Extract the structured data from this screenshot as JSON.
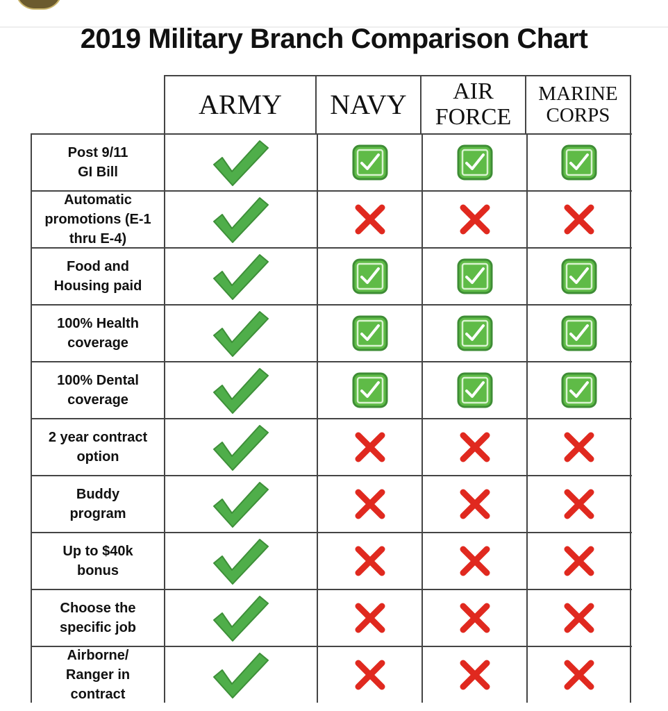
{
  "title": "2019 Military Branch Comparison Chart",
  "branches": [
    {
      "key": "army",
      "label": "ARMY"
    },
    {
      "key": "navy",
      "label": "NAVY"
    },
    {
      "key": "air_force",
      "label": "AIR\nFORCE"
    },
    {
      "key": "marine_corps",
      "label": "MARINE\nCORPS"
    }
  ],
  "colors": {
    "army_check": "#4fae4a",
    "badge_fill": "#5fbb47",
    "badge_dark": "#3e8d35",
    "cross": "#e0291f"
  },
  "icons": {
    "army": "large-check-icon",
    "yes": "check-box-icon",
    "no": "cross-icon"
  },
  "rows": [
    {
      "label": "Post 9/11\nGI Bill",
      "army": true,
      "navy": true,
      "air_force": true,
      "marine_corps": true
    },
    {
      "label": "Automatic\npromotions (E-1\nthru E-4)",
      "army": true,
      "navy": false,
      "air_force": false,
      "marine_corps": false
    },
    {
      "label": "Food and\nHousing paid",
      "army": true,
      "navy": true,
      "air_force": true,
      "marine_corps": true
    },
    {
      "label": "100% Health\ncoverage",
      "army": true,
      "navy": true,
      "air_force": true,
      "marine_corps": true
    },
    {
      "label": "100% Dental\ncoverage",
      "army": true,
      "navy": true,
      "air_force": true,
      "marine_corps": true
    },
    {
      "label": "2 year contract\noption",
      "army": true,
      "navy": false,
      "air_force": false,
      "marine_corps": false
    },
    {
      "label": "Buddy\nprogram",
      "army": true,
      "navy": false,
      "air_force": false,
      "marine_corps": false
    },
    {
      "label": "Up to $40k\nbonus",
      "army": true,
      "navy": false,
      "air_force": false,
      "marine_corps": false
    },
    {
      "label": "Choose the\nspecific job",
      "army": true,
      "navy": false,
      "air_force": false,
      "marine_corps": false
    },
    {
      "label": "Airborne/\nRanger in\ncontract",
      "army": true,
      "navy": false,
      "air_force": false,
      "marine_corps": false
    }
  ]
}
